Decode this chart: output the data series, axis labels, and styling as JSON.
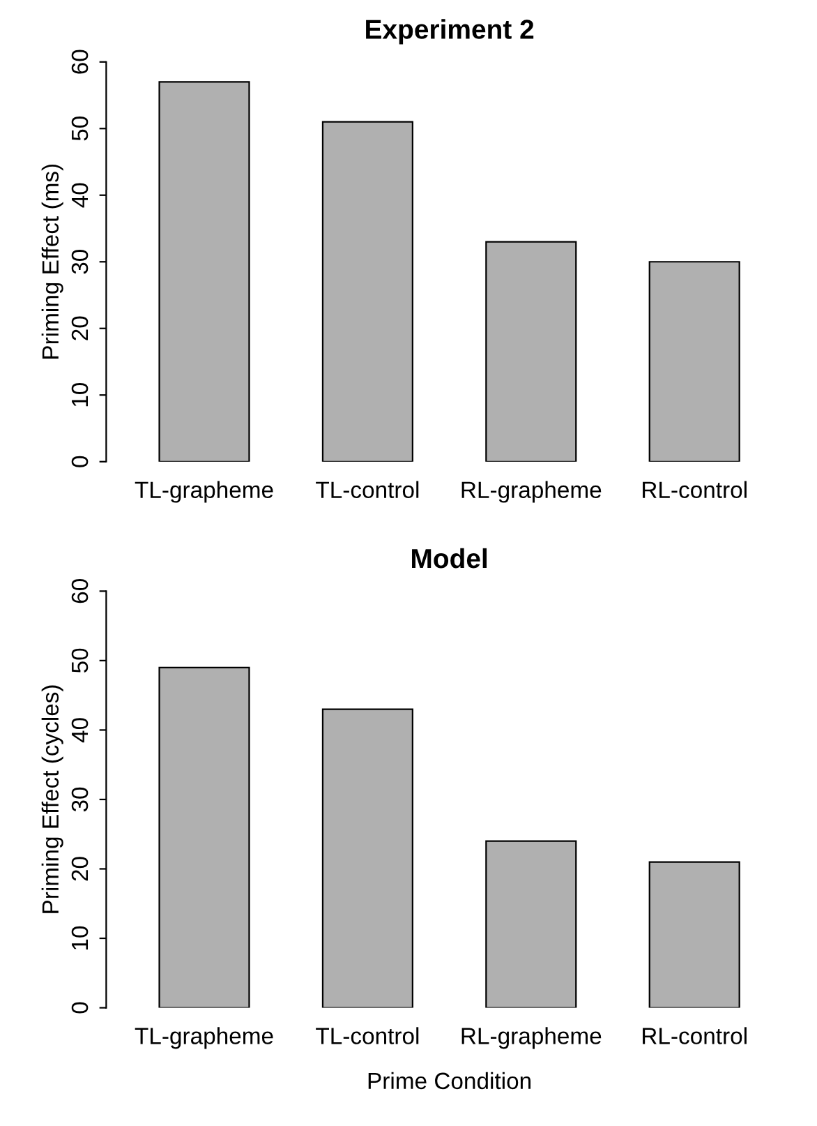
{
  "chart_data": [
    {
      "type": "bar",
      "title": "Experiment 2",
      "ylabel": "Priming Effect (ms)",
      "categories": [
        "TL-grapheme",
        "TL-control",
        "RL-grapheme",
        "RL-control"
      ],
      "values": [
        57,
        51,
        33,
        30
      ],
      "color": "#b0b0b0",
      "ylim": [
        0,
        60
      ],
      "yticks": [
        0,
        10,
        20,
        30,
        40,
        50,
        60
      ],
      "grid": false
    },
    {
      "type": "bar",
      "title": "Model",
      "ylabel": "Priming Effect (cycles)",
      "xlabel": "Prime Condition",
      "categories": [
        "TL-grapheme",
        "TL-control",
        "RL-grapheme",
        "RL-control"
      ],
      "values": [
        49,
        43,
        24,
        21
      ],
      "color": "#b0b0b0",
      "ylim": [
        0,
        60
      ],
      "yticks": [
        0,
        10,
        20,
        30,
        40,
        50,
        60
      ],
      "grid": false
    }
  ]
}
